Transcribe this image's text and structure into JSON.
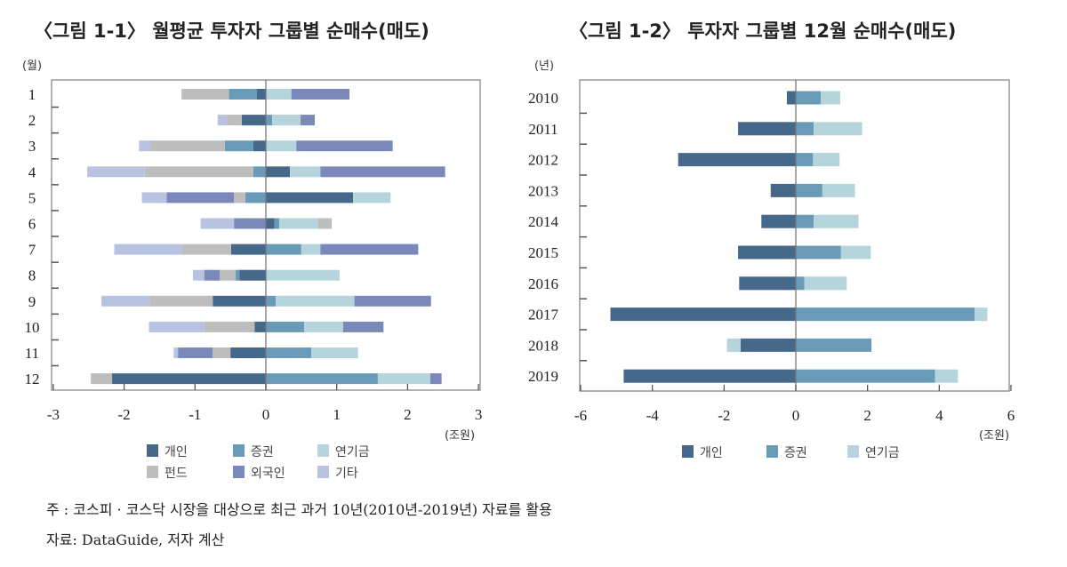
{
  "chart_data": [
    {
      "type": "bar",
      "orientation": "horizontal",
      "stacked": true,
      "title": "〈그림 1-1〉 월평균 투자자 그룹별 순매수(매도)",
      "ylabel": "(월)",
      "xlabel": "(조원)",
      "categories": [
        "1",
        "2",
        "3",
        "4",
        "5",
        "6",
        "7",
        "8",
        "9",
        "10",
        "11",
        "12"
      ],
      "xlim": [
        -3,
        3
      ],
      "xticks": [
        "-3",
        "-2",
        "-1",
        "0",
        "1",
        "2",
        "3"
      ],
      "legend_position": "bottom",
      "series": [
        {
          "name": "개인",
          "color": "#46688a",
          "values": [
            -0.13,
            -0.34,
            -0.18,
            0.34,
            1.23,
            0.12,
            -0.49,
            -0.37,
            -0.75,
            -0.16,
            -0.5,
            -2.17
          ]
        },
        {
          "name": "증권",
          "color": "#699bb8",
          "values": [
            -0.39,
            0.09,
            -0.4,
            -0.18,
            -0.29,
            0.07,
            0.5,
            -0.06,
            0.14,
            0.54,
            0.64,
            1.58
          ]
        },
        {
          "name": "연기금",
          "color": "#b5d4db",
          "values": [
            0.36,
            0.4,
            0.43,
            0.43,
            0.53,
            0.55,
            0.27,
            1.04,
            1.11,
            0.55,
            0.66,
            0.74
          ]
        },
        {
          "name": "펀드",
          "color": "#bdbdbd",
          "values": [
            -0.67,
            -0.21,
            -1.05,
            -1.53,
            -0.16,
            0.19,
            -0.69,
            -0.22,
            -0.89,
            -0.71,
            -0.25,
            -0.3
          ]
        },
        {
          "name": "외국인",
          "color": "#7a89b9",
          "values": [
            0.82,
            0.2,
            1.36,
            1.76,
            -0.95,
            -0.45,
            1.38,
            -0.22,
            1.08,
            0.57,
            -0.49,
            0.16
          ]
        },
        {
          "name": "기타",
          "color": "#b8c3e2",
          "values": [
            0,
            -0.13,
            -0.16,
            -0.81,
            -0.35,
            -0.47,
            -0.96,
            -0.16,
            -0.68,
            -0.78,
            -0.06,
            0
          ]
        }
      ]
    },
    {
      "type": "bar",
      "orientation": "horizontal",
      "stacked": true,
      "title": "〈그림 1-2〉 투자자 그룹별 12월 순매수(매도)",
      "ylabel": "(년)",
      "xlabel": "(조원)",
      "categories": [
        "2010",
        "2011",
        "2012",
        "2013",
        "2014",
        "2015",
        "2016",
        "2017",
        "2018",
        "2019"
      ],
      "xlim": [
        -6,
        6
      ],
      "xticks": [
        "-6",
        "-4",
        "-2",
        "0",
        "2",
        "4",
        "6"
      ],
      "legend_position": "bottom",
      "series": [
        {
          "name": "개인",
          "color": "#46688a",
          "values": [
            -0.25,
            -1.61,
            -3.28,
            -0.7,
            -0.96,
            -1.61,
            -1.58,
            -5.17,
            -1.54,
            -4.8
          ]
        },
        {
          "name": "증권",
          "color": "#699bb8",
          "values": [
            0.7,
            0.5,
            0.48,
            0.74,
            0.5,
            1.26,
            0.24,
            4.99,
            2.11,
            3.88
          ]
        },
        {
          "name": "연기금",
          "color": "#b5d4db",
          "values": [
            0.54,
            1.35,
            0.74,
            0.91,
            1.25,
            0.83,
            1.18,
            0.35,
            -0.38,
            0.64
          ]
        }
      ]
    }
  ],
  "footnote": {
    "note": "주   : 코스피 · 코스닥 시장을 대상으로 최근 과거 10년(2010년-2019년) 자료를 활용",
    "source": "자료: DataGuide, 저자 계산"
  }
}
